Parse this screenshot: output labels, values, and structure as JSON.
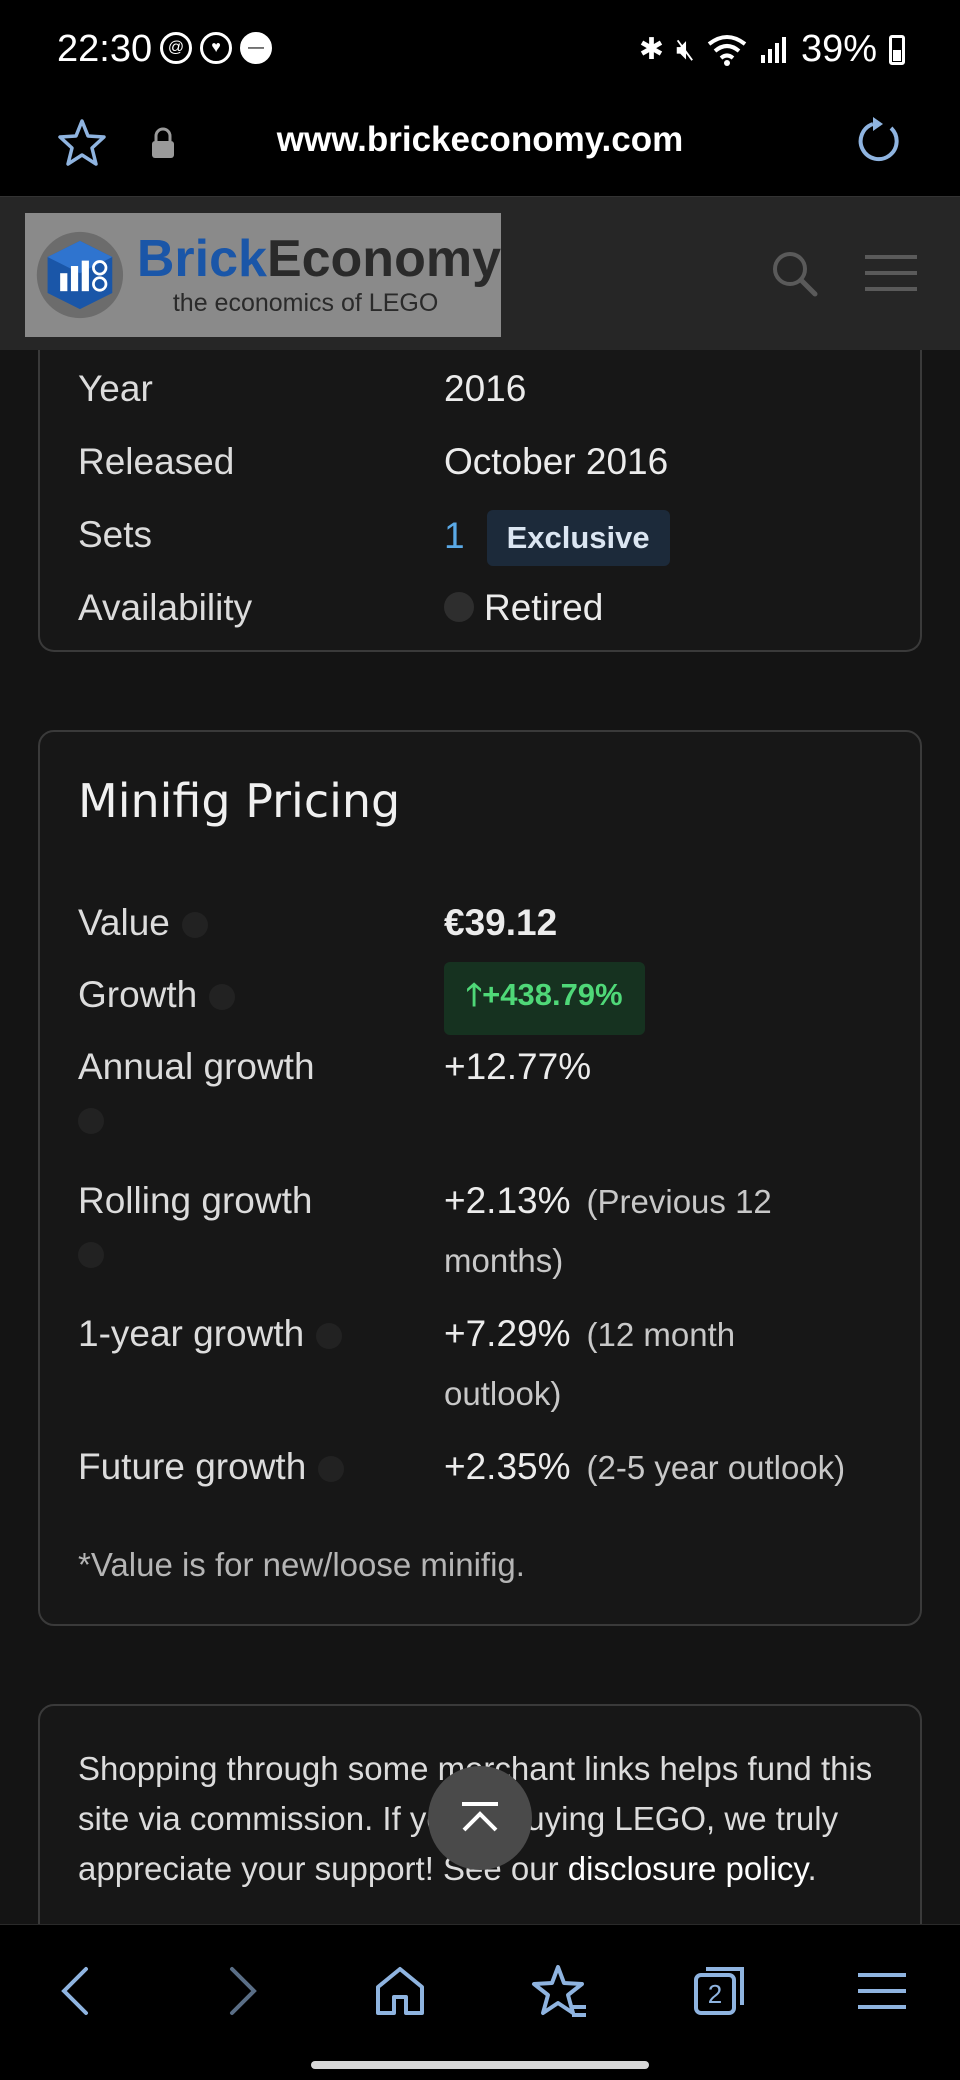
{
  "status_bar": {
    "time": "22:30",
    "battery": "39%"
  },
  "browser": {
    "url": "www.brickeconomy.com",
    "tab_count": "2"
  },
  "site": {
    "logo_name_part1": "Brick",
    "logo_name_part2": "Economy",
    "logo_tagline": "the economics of LEGO"
  },
  "details": {
    "rows": [
      {
        "label": "Year",
        "value": "2016"
      },
      {
        "label": "Released",
        "value": "October 2016"
      },
      {
        "label": "Sets",
        "value": "1",
        "badge": "Exclusive"
      },
      {
        "label": "Availability",
        "value": "Retired"
      }
    ]
  },
  "pricing": {
    "title": "Minifig Pricing",
    "value_label": "Value",
    "value": "€39.12",
    "growth_label": "Growth",
    "growth": "+438.79%",
    "annual_label": "Annual growth",
    "annual": "+12.77%",
    "rolling_label": "Rolling growth",
    "rolling": "+2.13%",
    "rolling_note_1": "(Previous 12",
    "rolling_note_2": "months)",
    "one_year_label": "1-year growth",
    "one_year": "+7.29%",
    "one_year_note_1": "(12 month",
    "one_year_note_2": "outlook)",
    "future_label": "Future growth",
    "future": "+2.35%",
    "future_note": "(2-5 year outlook)",
    "footnote": "*Value is for new/loose minifig."
  },
  "disclosure": {
    "text_1": "Shopping through some merchant links helps fund this site via commission. If you're buying LEGO, we truly appreciate your support! See our ",
    "link": "disclosure policy",
    "text_2": "."
  },
  "colors": {
    "accent_link": "#5aa9e6",
    "growth_green": "#4fd878",
    "logo_blue": "#1a56a8"
  }
}
